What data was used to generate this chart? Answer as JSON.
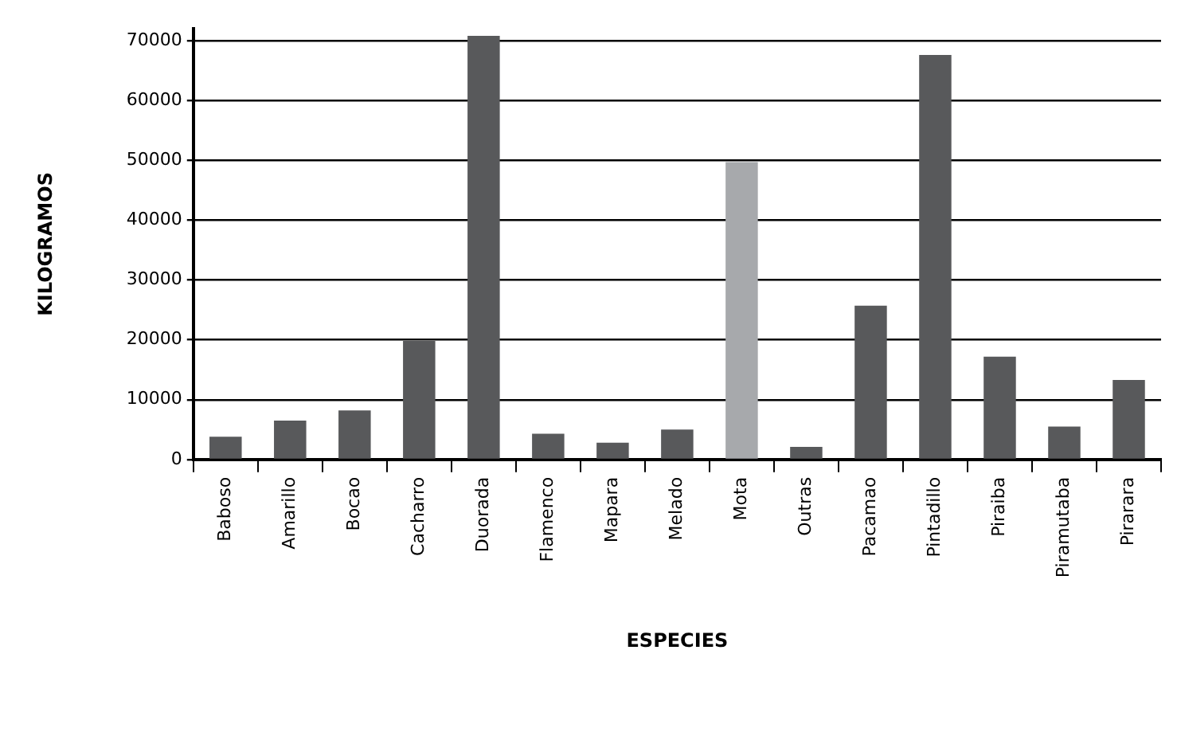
{
  "chart_data": {
    "type": "bar",
    "xlabel": "ESPECIES",
    "ylabel": "KILOGRAMOS",
    "categories": [
      "Baboso",
      "Amarillo",
      "Bocao",
      "Cacharro",
      "Duorada",
      "Flamenco",
      "Mapara",
      "Melado",
      "Mota",
      "Outras",
      "Pacamao",
      "Pintadillo",
      "Piraiba",
      "Piramutaba",
      "Pirarara"
    ],
    "values": [
      3800,
      6500,
      8200,
      19800,
      70800,
      4300,
      2800,
      5000,
      49700,
      2100,
      25700,
      67600,
      17200,
      5500,
      13300
    ],
    "colors": [
      "#58595b",
      "#58595b",
      "#58595b",
      "#58595b",
      "#58595b",
      "#58595b",
      "#58595b",
      "#58595b",
      "#a7a9ac",
      "#58595b",
      "#58595b",
      "#58595b",
      "#58595b",
      "#58595b",
      "#58595b"
    ],
    "ylim": [
      0,
      72000
    ],
    "yticks": [
      0,
      10000,
      20000,
      30000,
      40000,
      50000,
      60000,
      70000
    ],
    "grid": "y",
    "legend": false
  }
}
